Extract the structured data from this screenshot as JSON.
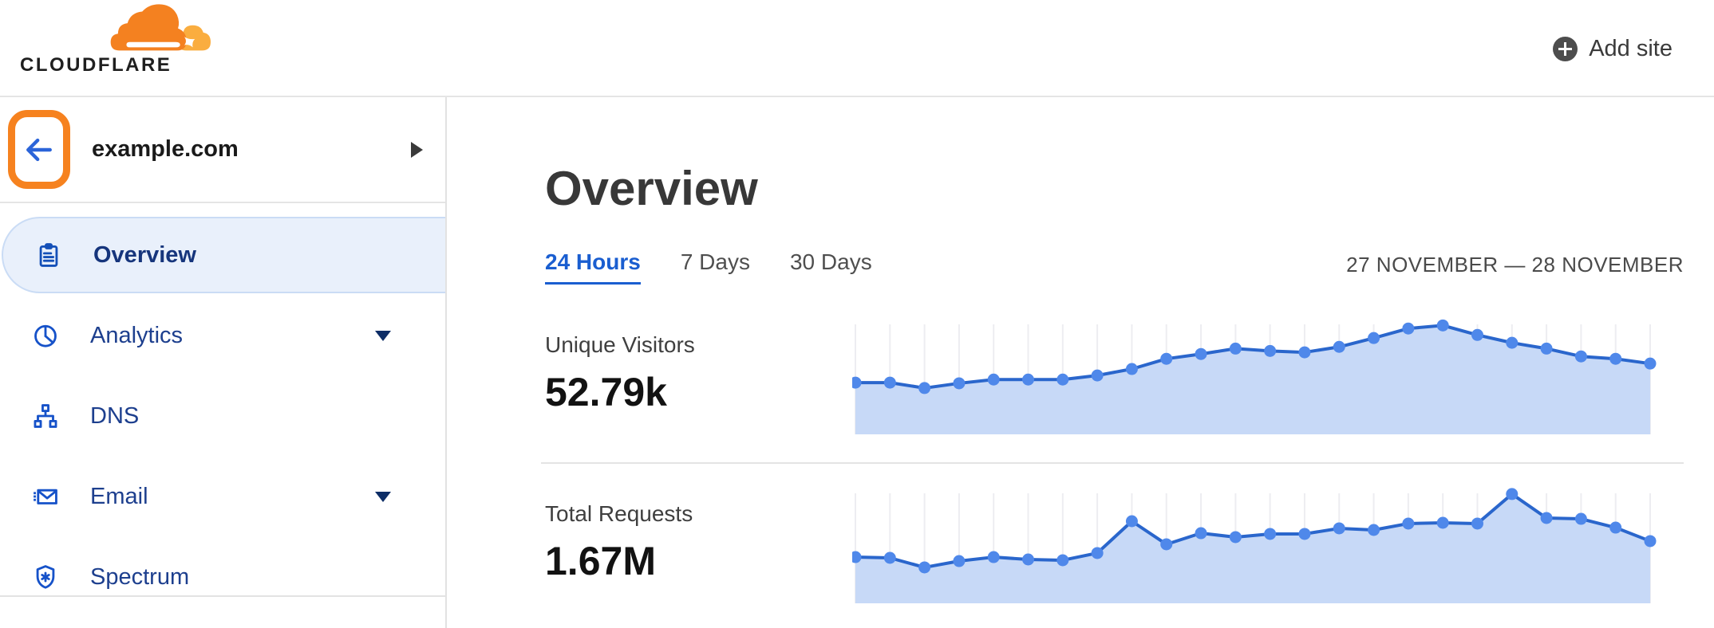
{
  "header": {
    "logo_text": "CLOUDFLARE",
    "add_site_label": "Add site"
  },
  "sidebar": {
    "site_name": "example.com",
    "items": [
      {
        "label": "Overview",
        "icon": "clipboard-icon",
        "selected": true,
        "has_caret": false
      },
      {
        "label": "Analytics",
        "icon": "pie-chart-icon",
        "selected": false,
        "has_caret": true
      },
      {
        "label": "DNS",
        "icon": "sitemap-icon",
        "selected": false,
        "has_caret": false
      },
      {
        "label": "Email",
        "icon": "email-icon",
        "selected": false,
        "has_caret": true
      },
      {
        "label": "Spectrum",
        "icon": "shield-icon",
        "selected": false,
        "has_caret": false
      }
    ]
  },
  "main": {
    "title": "Overview",
    "tabs": [
      {
        "label": "24 Hours",
        "active": true
      },
      {
        "label": "7 Days",
        "active": false
      },
      {
        "label": "30 Days",
        "active": false
      }
    ],
    "date_range": "27 NOVEMBER — 28 NOVEMBER",
    "metrics": [
      {
        "label": "Unique Visitors",
        "value": "52.79k"
      },
      {
        "label": "Total Requests",
        "value": "1.67M"
      }
    ]
  },
  "colors": {
    "brand_orange": "#f6821f",
    "logo_orange": "#f48120",
    "logo_orange_light": "#faad3f",
    "link_blue": "#1a5ed0",
    "nav_text_blue": "#1d3f8e",
    "nav_icon_blue": "#1652c9",
    "selected_pill_bg": "#e9f0fb",
    "chart_line": "#2a66cc",
    "chart_dot": "#4f88ea",
    "chart_fill": "#c7d9f7",
    "chart_grid": "#ededf1"
  },
  "chart_data": [
    {
      "type": "area",
      "title": "Unique Visitors",
      "total_label": "52.79k",
      "x_unit": "hour of 24-hour window (27–28 November)",
      "x": [
        0,
        1,
        2,
        3,
        4,
        5,
        6,
        7,
        8,
        9,
        10,
        11,
        12,
        13,
        14,
        15,
        16,
        17,
        18,
        19,
        20,
        21,
        22,
        23
      ],
      "values": [
        1520,
        1520,
        1360,
        1500,
        1610,
        1610,
        1610,
        1730,
        1920,
        2220,
        2360,
        2520,
        2450,
        2410,
        2570,
        2830,
        3110,
        3200,
        2920,
        2690,
        2520,
        2290,
        2220,
        2080
      ],
      "y_unit": "estimated visitors per hour",
      "ylim": [
        0,
        3700
      ],
      "grid": "vertical-per-point",
      "axes_hidden": true,
      "legend": "none"
    },
    {
      "type": "area",
      "title": "Total Requests",
      "total_label": "1.67M",
      "x_unit": "hour of 24-hour window (27–28 November)",
      "x": [
        0,
        1,
        2,
        3,
        4,
        5,
        6,
        7,
        8,
        9,
        10,
        11,
        12,
        13,
        14,
        15,
        16,
        17,
        18,
        19,
        20,
        21,
        22,
        23
      ],
      "values": [
        49000,
        48200,
        38100,
        44800,
        49000,
        46500,
        45700,
        53300,
        87100,
        62600,
        74400,
        70200,
        73600,
        73600,
        79500,
        77800,
        84600,
        85400,
        84600,
        115900,
        90500,
        89600,
        80300,
        66000
      ],
      "y_unit": "estimated requests per hour",
      "ylim": [
        0,
        133600
      ],
      "grid": "vertical-per-point",
      "axes_hidden": true,
      "legend": "none"
    }
  ]
}
